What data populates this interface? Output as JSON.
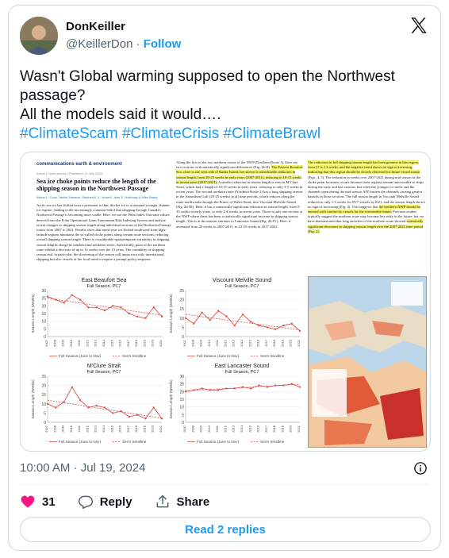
{
  "author": {
    "name": "DonKeiller",
    "handle": "@KeillerDon",
    "separator": "·",
    "follow_label": "Follow"
  },
  "tweet": {
    "line1": "Wasn't Global warming supposed to open the Northwest passage?",
    "line2": "All the models said it would….",
    "hashtags": "#ClimateScam #ClimateCrisis #ClimateBrawl"
  },
  "paper": {
    "journal": "communications earth & environment",
    "meta": "Article | Open access | Published: 11 July 2024",
    "title": "Sea ice choke points reduce the length of the shipping season in the Northwest Passage",
    "authors": "Alison L. Cook, Jackie Dawson, Stephen E. L. Howell, Jean E. Holloway & Mike Brady",
    "abstract": "Arctic sea ice has shifted from a perennial to thin, thicker ice to a seasonal younger, thinner ice regime, leading to the increasingly common belief that shipping through Canada's Northwest Passage is becoming more viable. Here, we use the Polar Index Outcome values derived from the Polar Operational Limit Assessment Risk Indexing System and analyze recent changes to shipping season length along individual sections of the Northwest Passage routes from 2007 to 2021. Results show that multi-year ice floated southward from high-latitude regions maintains the so-called choke points along certain route sections, reducing overall shipping season length. There is considerable spatiotemporal variability in shipping season lengths along the southern and northern routes. Specifically, parts of the northern route exhibit a decrease of up to 14 weeks over the 15 years. The variability of shipping season and, in particular, the shortening of the season will impact not only international shipping but also vessels of the local need to require a prompt policy response.",
    "col2_p1": "Along the first of the two northern routes of the NWP (Northern Route 1), there are two sections with statistically significant differences (Fig. 2b-II).",
    "col2_hl": "The Eastern Beaufort Sea, close to the west side of Banks Island, has shown a considerable reduction in season length, from 20-25 weeks in early years (2007-2011), reducing to 10-15 weeks in recent years (2017-2021).",
    "col2_p2": "A similar reduction in season length is seen in M'Clure Strait, which had a length of 10-15 weeks in early years, reducing to only 3-5 weeks in recent years. The second northern route (Northern Route 2) has a long shipping season in the Amundsen Gulf (20-25 weeks) in all time periods, which reduces along the route northwards through the Prince of Wales Strait, into Viscount Melville Sound (Fig. 2b-III). Here, it has a statistically significant reduction in season length, from 5-10 weeks in early years, to only 2-4 weeks in recent years.",
    "col2_p3": "There is only one section of the NWP where there has been a statistically significant increase in shipping season length. This is at the eastern entrance to Lancaster Sound (Fig. 2b-IV). Here, it increased from 20 weeks in 2007-2011, to 23-25 weeks in 2017-2021.",
    "col3_hl": "The reduction in full shipping season length has been greatest in this region, from 27 to 13 weeks, and the negative trend shows no sign of reversing, indicating that this region should be closely observed for future vessel transit",
    "col3_p1": "(Figs. 4, 5). The reduction in weeks over 2007-2021 during mid season in the choke point locations occurs because these regions remain inaccessible to ships during the early and late seasons, but when the younger ice melts and the channels open during the mid season, MYI enters the channels causing greater hazards in those sections. The full season length in Viscount Melville Sound reduced to only 1-5 weeks for PC7 vessels in 2021, and the season length shows no sign of increasing (Fig. 4). This suggests that",
    "col3_hl2": "the northern NWP should be entered with caution by vessels for the foreseeable future.",
    "col3_p2": "Previous studies typically suggest the northern route may become less risky in the future, but we have demonstrated that long stretches of the northern route showed",
    "col3_hl3": "statistically significant decreases in shipping season length over the 2007-2021 time period (Fig. 2)."
  },
  "chart_data": [
    {
      "type": "line",
      "title": "East Beaufort Sea",
      "subtitle": "Full Season, PC7",
      "ylabel": "Season Length (Weeks)",
      "x": [
        "2007",
        "2008",
        "2009",
        "2010",
        "2011",
        "2012",
        "2013",
        "2014",
        "2015",
        "2016",
        "2017",
        "2018",
        "2019",
        "2020",
        "2021"
      ],
      "series": [
        {
          "name": "Full Season (June to Nov)",
          "values": [
            26,
            24,
            22,
            27,
            24,
            19,
            19,
            17,
            20,
            19,
            15,
            13,
            12,
            19,
            13
          ]
        },
        {
          "name": "Sen's trendline",
          "values": [
            25,
            24.2,
            23.4,
            22.6,
            21.8,
            21,
            20.2,
            19.4,
            18.6,
            17.8,
            17,
            16.2,
            15.4,
            14.6,
            13.8
          ]
        }
      ],
      "ylim": [
        0,
        30
      ],
      "yticks": [
        0,
        5,
        10,
        15,
        20,
        25,
        30
      ]
    },
    {
      "type": "line",
      "title": "Viscount Melville Sound",
      "subtitle": "Full Season, PC7",
      "ylabel": "Season Length (Weeks)",
      "x": [
        "2007",
        "2008",
        "2009",
        "2010",
        "2011",
        "2012",
        "2013",
        "2014",
        "2015",
        "2016",
        "2017",
        "2018",
        "2019",
        "2020",
        "2021"
      ],
      "series": [
        {
          "name": "Full Season (June to Nov)",
          "values": [
            10,
            7,
            13,
            9,
            14,
            11,
            6,
            12,
            8,
            6,
            5,
            4,
            6,
            7,
            3
          ]
        },
        {
          "name": "Sen's trendline",
          "values": [
            12,
            11.4,
            10.8,
            10.2,
            9.6,
            9,
            8.4,
            7.8,
            7.2,
            6.6,
            6,
            5.4,
            4.8,
            4.2,
            3.6
          ]
        }
      ],
      "ylim": [
        0,
        25
      ],
      "yticks": [
        0,
        5,
        10,
        15,
        20,
        25
      ]
    },
    {
      "type": "line",
      "title": "M'Clure Strait",
      "subtitle": "Full Season, PC7",
      "ylabel": "Season Length (Weeks)",
      "x": [
        "2007",
        "2008",
        "2009",
        "2010",
        "2011",
        "2012",
        "2013",
        "2014",
        "2015",
        "2016",
        "2017",
        "2018",
        "2019",
        "2020",
        "2021"
      ],
      "series": [
        {
          "name": "Full Season (June to Nov)",
          "values": [
            10,
            8,
            11,
            19,
            12,
            8,
            9,
            8,
            5,
            6,
            3,
            4,
            2,
            8,
            2
          ]
        },
        {
          "name": "Sen's trendline",
          "values": [
            12,
            11.3,
            10.6,
            9.9,
            9.2,
            8.5,
            7.8,
            7.1,
            6.4,
            5.7,
            5,
            4.3,
            3.6,
            2.9,
            2.2
          ]
        }
      ],
      "ylim": [
        0,
        25
      ],
      "yticks": [
        0,
        5,
        10,
        15,
        20,
        25
      ]
    },
    {
      "type": "line",
      "title": "East Lancaster Sound",
      "subtitle": "Full Season, PC7",
      "ylabel": "Season Length (Weeks)",
      "x": [
        "2007",
        "2008",
        "2009",
        "2010",
        "2011",
        "2012",
        "2013",
        "2014",
        "2015",
        "2016",
        "2017",
        "2018",
        "2019",
        "2020",
        "2021"
      ],
      "series": [
        {
          "name": "Full Season (June to Nov)",
          "values": [
            20,
            21,
            22,
            21,
            21,
            22,
            22,
            23,
            22,
            24,
            23,
            24,
            24,
            25,
            23
          ]
        },
        {
          "name": "Sen's trendline",
          "values": [
            20.5,
            20.8,
            21.1,
            21.4,
            21.7,
            22,
            22.3,
            22.6,
            22.9,
            23.2,
            23.5,
            23.8,
            24.1,
            24.4,
            24.7
          ]
        }
      ],
      "ylim": [
        0,
        30
      ],
      "yticks": [
        0,
        5,
        10,
        15,
        20,
        25,
        30
      ]
    }
  ],
  "timestamp": "10:00 AM · Jul 19, 2024",
  "actions": {
    "like_count": "31",
    "reply_label": "Reply",
    "share_label": "Share"
  },
  "read_replies_label": "Read 2 replies",
  "colors": {
    "accent": "#1d9bf0",
    "like": "#f91880",
    "series": "#d9534f"
  }
}
